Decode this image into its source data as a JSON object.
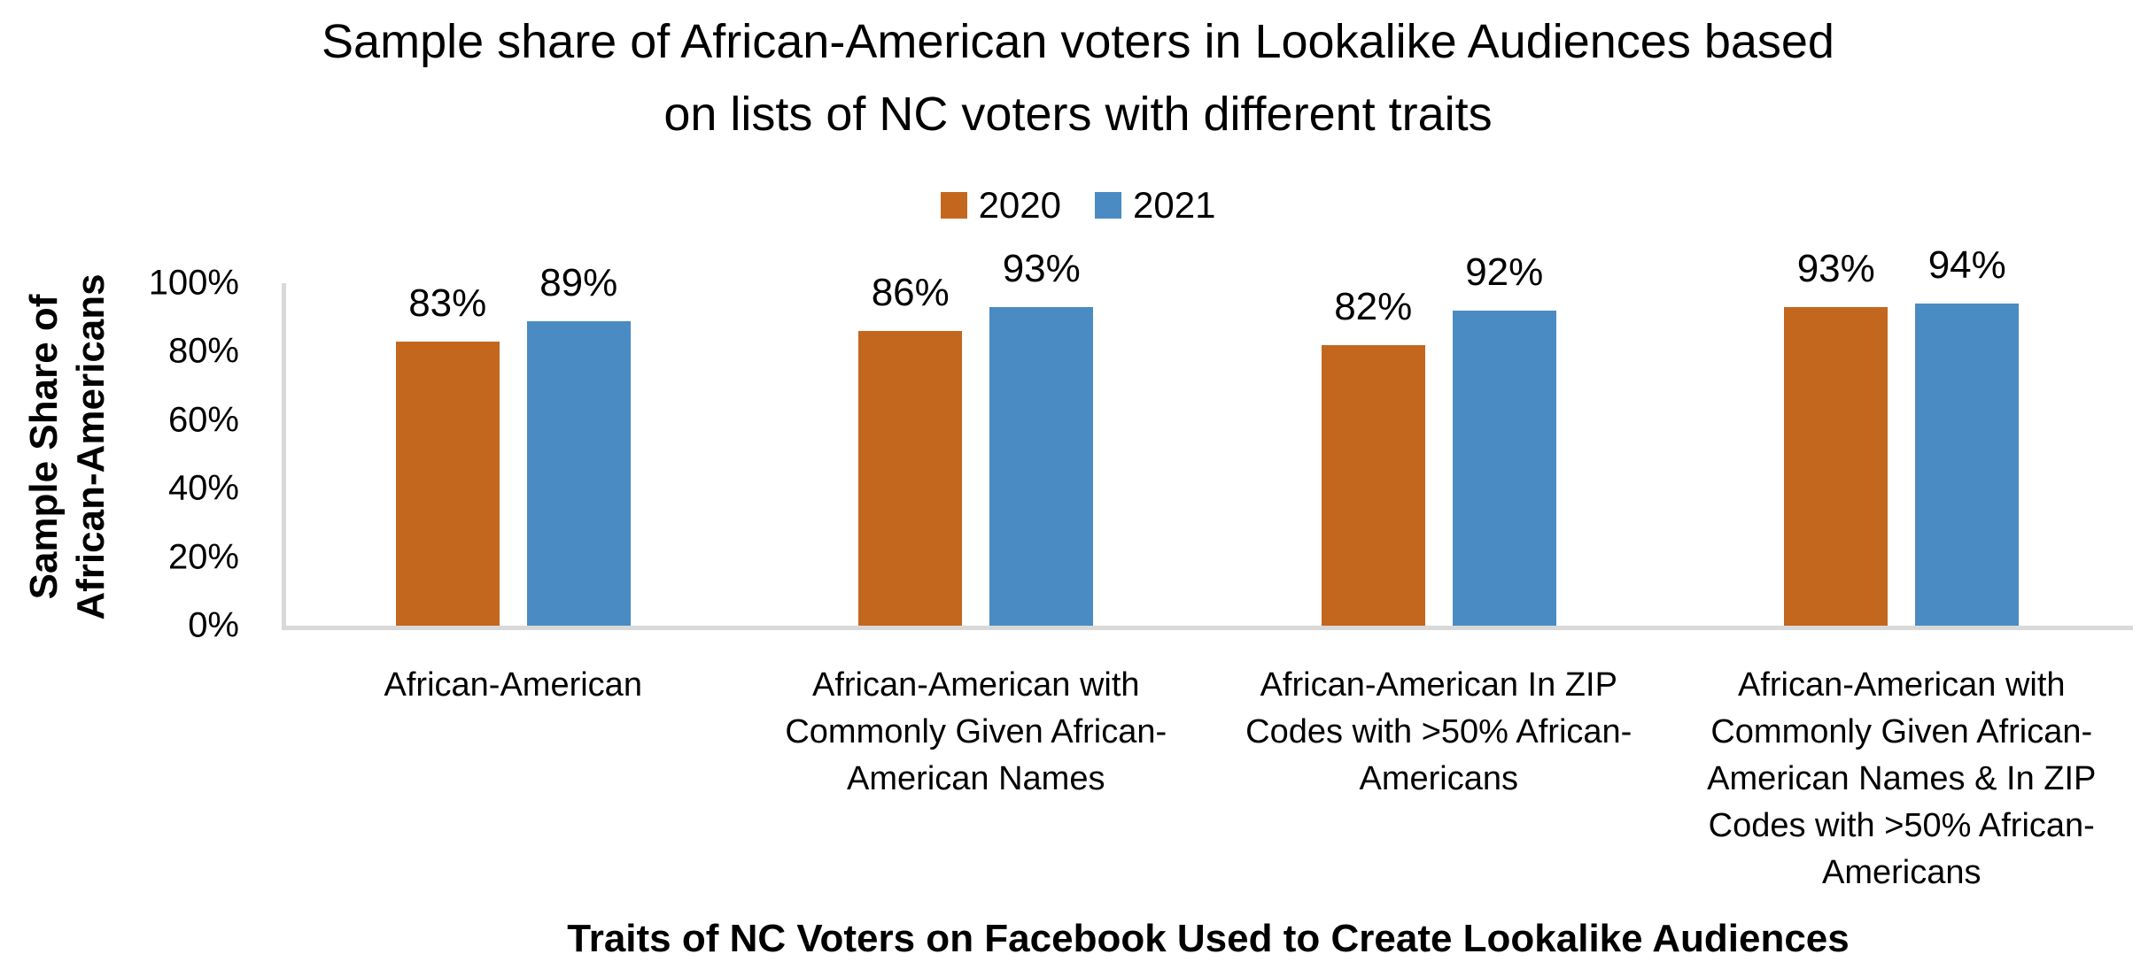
{
  "title": {
    "text": "Sample share of African-American voters in Lookalike Audiences based on lists of NC voters with different traits",
    "lines": "Sample share of African-American voters in Lookalike Audiences based\non lists of NC voters with different traits"
  },
  "legend": {
    "items": [
      {
        "label": "2020",
        "color": "#C4671E"
      },
      {
        "label": "2021",
        "color": "#4A8BC3"
      }
    ]
  },
  "y_axis": {
    "title": "Sample Share of African-Americans",
    "title_lines": "Sample Share of\nAfrican-Americans",
    "ticks": [
      "0%",
      "20%",
      "40%",
      "60%",
      "80%",
      "100%"
    ]
  },
  "x_axis": {
    "title": "Traits of NC Voters on Facebook Used to Create Lookalike Audiences"
  },
  "colors": {
    "axis_line": "#D9D9D9",
    "text": "#000000",
    "background": "#FFFFFF",
    "series_2020": "#C4671E",
    "series_2021": "#4A8BC3"
  },
  "chart_data": {
    "type": "bar",
    "title": "Sample share of African-American voters in Lookalike Audiences based on lists of NC voters with different traits",
    "xlabel": "Traits of NC Voters on Facebook Used to Create Lookalike Audiences",
    "ylabel": "Sample Share of African-Americans",
    "ylim": [
      0,
      100
    ],
    "ytick_labels": [
      "0%",
      "20%",
      "40%",
      "60%",
      "80%",
      "100%"
    ],
    "grid": false,
    "legend_position": "top-center",
    "categories": [
      "African-American",
      "African-American with Commonly Given African-American Names",
      "African-American In ZIP Codes with >50% African-Americans",
      "African-American with Commonly Given African-American Names & In ZIP Codes with >50% African-Americans"
    ],
    "category_label_lines": [
      "African-American",
      "African-American with\nCommonly Given African-\nAmerican Names",
      "African-American In ZIP\nCodes with >50% African-\nAmericans",
      "African-American with\nCommonly Given African-\nAmerican Names & In ZIP\nCodes with >50% African-\nAmericans"
    ],
    "series": [
      {
        "name": "2020",
        "color": "#C4671E",
        "values": [
          83,
          86,
          82,
          93
        ],
        "labels": [
          "83%",
          "86%",
          "82%",
          "93%"
        ]
      },
      {
        "name": "2021",
        "color": "#4A8BC3",
        "values": [
          89,
          93,
          92,
          94
        ],
        "labels": [
          "89%",
          "93%",
          "92%",
          "94%"
        ]
      }
    ]
  }
}
